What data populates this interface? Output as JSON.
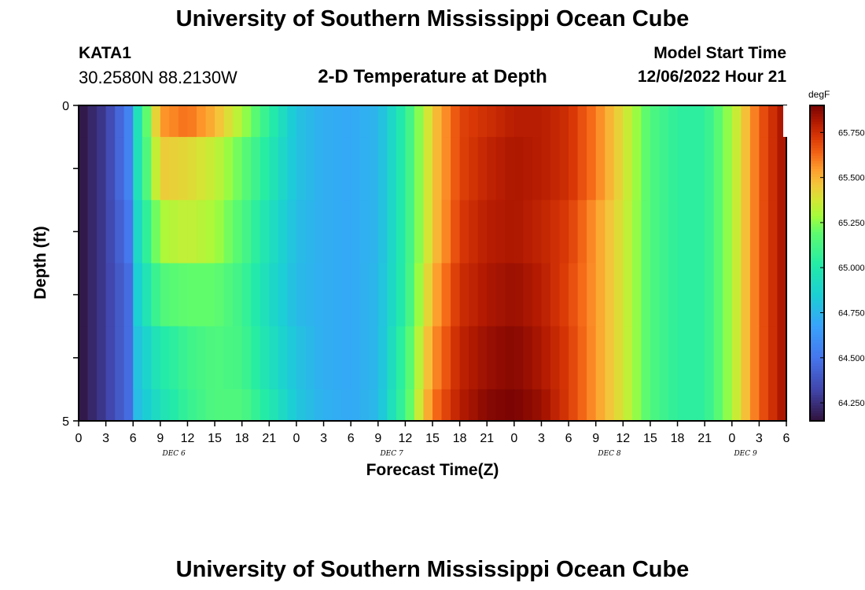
{
  "header": {
    "title": "University of Southern Mississippi Ocean Cube",
    "station": "KATA1",
    "coordinates": "30.2580N  88.2130W",
    "subtitle": "2-D Temperature at Depth",
    "model_start_label": "Model Start Time",
    "model_start_value": "12/06/2022 Hour 21"
  },
  "footer": {
    "title": "University of Southern Mississippi Ocean Cube"
  },
  "chart_data": {
    "type": "heatmap",
    "xlabel": "Forecast Time(Z)",
    "ylabel": "Depth (ft)",
    "colorbar_unit": "degF",
    "x_tick_labels": [
      "0",
      "3",
      "6",
      "9",
      "12",
      "15",
      "18",
      "21",
      "0",
      "3",
      "6",
      "9",
      "12",
      "15",
      "18",
      "21",
      "0",
      "3",
      "6",
      "9",
      "12",
      "15",
      "18",
      "21",
      "0",
      "3",
      "6"
    ],
    "x_day_labels": [
      {
        "label": "DEC 6",
        "at_tick": 3.5
      },
      {
        "label": "DEC 7",
        "at_tick": 11.5
      },
      {
        "label": "DEC 8",
        "at_tick": 19.5
      },
      {
        "label": "DEC 9",
        "at_tick": 24.5
      }
    ],
    "y_tick_labels": [
      "0",
      "5"
    ],
    "ylim": [
      0,
      5
    ],
    "x_range_hours": [
      0,
      78
    ],
    "color_range": [
      64.15,
      65.9
    ],
    "colorbar_ticks": [
      "64.250",
      "64.500",
      "64.750",
      "65.000",
      "65.250",
      "65.500",
      "65.750"
    ],
    "colorbar_tick_values": [
      64.25,
      64.5,
      64.75,
      65.0,
      65.25,
      65.5,
      65.75
    ],
    "colorscale": "turbo",
    "depth_rows": [
      "0-0.5",
      "0.5-1.5",
      "1.5-2.5",
      "2.5-3.5",
      "3.5-4.5",
      "4.5-5"
    ],
    "time_nodes_hours": [
      0,
      3,
      6,
      6.5,
      9,
      12,
      15,
      18,
      21,
      24,
      27,
      30,
      33,
      36,
      39,
      42,
      45,
      48,
      51,
      54,
      57,
      60,
      63,
      66,
      69,
      72,
      75,
      78
    ],
    "temperature_rows": [
      [
        64.15,
        64.3,
        64.6,
        64.95,
        65.55,
        65.62,
        65.5,
        65.3,
        65.05,
        64.8,
        64.72,
        64.7,
        64.75,
        65.05,
        65.45,
        65.7,
        65.75,
        65.8,
        65.8,
        65.75,
        65.6,
        65.4,
        65.15,
        65.05,
        65.05,
        65.3,
        65.65,
        65.85
      ],
      [
        64.15,
        64.3,
        64.6,
        64.95,
        65.45,
        65.42,
        65.35,
        65.2,
        65.0,
        64.8,
        64.72,
        64.7,
        64.75,
        65.05,
        65.45,
        65.7,
        65.78,
        65.82,
        65.8,
        65.75,
        65.6,
        65.4,
        65.15,
        65.05,
        65.05,
        65.3,
        65.65,
        65.85
      ],
      [
        64.15,
        64.3,
        64.55,
        64.9,
        65.3,
        65.35,
        65.3,
        65.15,
        64.95,
        64.78,
        64.72,
        64.7,
        64.75,
        65.05,
        65.45,
        65.72,
        65.8,
        65.82,
        65.78,
        65.72,
        65.55,
        65.38,
        65.15,
        65.05,
        65.05,
        65.3,
        65.65,
        65.85
      ],
      [
        64.15,
        64.3,
        64.5,
        64.85,
        65.15,
        65.2,
        65.2,
        65.1,
        64.92,
        64.77,
        64.72,
        64.7,
        64.76,
        65.05,
        65.5,
        65.75,
        65.82,
        65.85,
        65.8,
        65.7,
        65.55,
        65.38,
        65.15,
        65.05,
        65.05,
        65.3,
        65.65,
        65.85
      ],
      [
        64.15,
        64.3,
        64.5,
        64.8,
        65.0,
        65.1,
        65.15,
        65.12,
        64.95,
        64.8,
        64.72,
        64.7,
        64.76,
        65.1,
        65.55,
        65.78,
        65.85,
        65.88,
        65.82,
        65.72,
        65.55,
        65.38,
        65.15,
        65.05,
        65.05,
        65.3,
        65.65,
        65.85
      ],
      [
        64.15,
        64.3,
        64.5,
        64.78,
        64.95,
        65.08,
        65.15,
        65.15,
        65.0,
        64.82,
        64.73,
        64.7,
        64.77,
        65.12,
        65.6,
        65.8,
        65.88,
        65.9,
        65.85,
        65.72,
        65.55,
        65.38,
        65.15,
        65.05,
        65.05,
        65.3,
        65.65,
        65.85
      ]
    ]
  }
}
